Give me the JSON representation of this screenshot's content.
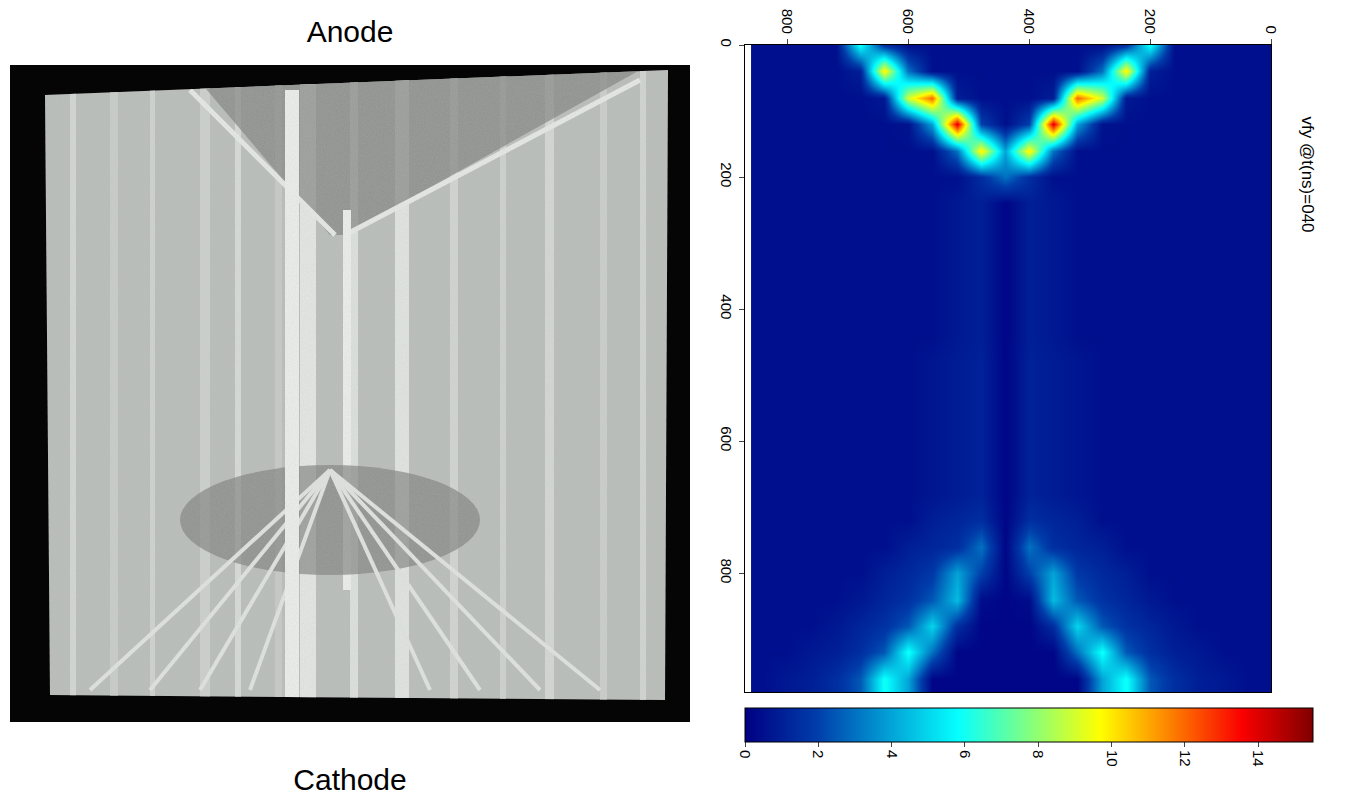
{
  "photo": {
    "top_label": "Anode",
    "bottom_label": "Cathode"
  },
  "chart_data": {
    "type": "heatmap",
    "title": "vfy @t(ns)=040",
    "x": [
      0,
      40,
      80,
      120,
      160,
      200,
      240,
      280,
      320,
      360,
      400,
      440,
      480,
      520,
      560,
      600,
      640,
      680,
      720,
      760,
      800,
      840
    ],
    "y": [
      0,
      40,
      80,
      120,
      160,
      200,
      240,
      280,
      320,
      360,
      400,
      440,
      480,
      520,
      560,
      600,
      640,
      680,
      720,
      760,
      800,
      840,
      880,
      920,
      960
    ],
    "z": [
      [
        0.5,
        0.5,
        0.5,
        0.5,
        0.5,
        6,
        1.5,
        0.5,
        0.5,
        0.5,
        0.5,
        0.5,
        0.5,
        0.5,
        0.5,
        0.5,
        1.5,
        6,
        0.5,
        0.5,
        0.5,
        0.5
      ],
      [
        0.5,
        0.5,
        0.5,
        0.5,
        0.5,
        1,
        10,
        3,
        0.5,
        0.5,
        0.5,
        0.5,
        0.5,
        0.5,
        0.5,
        3,
        10,
        1,
        0.5,
        0.5,
        0.5,
        0.5
      ],
      [
        0.5,
        0.5,
        0.5,
        0.5,
        0.5,
        0.5,
        0.8,
        9,
        12,
        1,
        0.5,
        0.5,
        0.5,
        1,
        12,
        9,
        0.8,
        0.5,
        0.5,
        0.5,
        0.5,
        0.5
      ],
      [
        0.5,
        0.5,
        0.5,
        0.5,
        0.5,
        0.5,
        0.5,
        0.6,
        4,
        14,
        2,
        0.5,
        2,
        14,
        4,
        0.6,
        0.5,
        0.5,
        0.5,
        0.5,
        0.5,
        0.5
      ],
      [
        0.5,
        0.5,
        0.5,
        0.5,
        0.5,
        0.5,
        0.5,
        0.5,
        0.5,
        3,
        10,
        4,
        10,
        3,
        0.5,
        0.5,
        0.5,
        0.5,
        0.5,
        0.5,
        0.5,
        0.5
      ],
      [
        0.5,
        0.5,
        0.5,
        0.5,
        0.5,
        0.5,
        0.5,
        0.5,
        0.5,
        0.5,
        1.5,
        3,
        1.5,
        0.5,
        0.5,
        0.5,
        0.5,
        0.5,
        0.5,
        0.5,
        0.5,
        0.5
      ],
      [
        0.5,
        0.5,
        0.5,
        0.5,
        0.5,
        0.5,
        0.5,
        0.5,
        0.5,
        0.8,
        1,
        0.2,
        1,
        0.8,
        0.5,
        0.5,
        0.5,
        0.5,
        0.5,
        0.5,
        0.5,
        0.5
      ],
      [
        0.5,
        0.5,
        0.5,
        0.5,
        0.5,
        0.5,
        0.5,
        0.5,
        0.5,
        0.8,
        1,
        0.2,
        1,
        0.8,
        0.5,
        0.5,
        0.5,
        0.5,
        0.5,
        0.5,
        0.5,
        0.5
      ],
      [
        0.5,
        0.5,
        0.5,
        0.5,
        0.5,
        0.5,
        0.5,
        0.5,
        0.5,
        0.8,
        1,
        0.2,
        1,
        0.8,
        0.5,
        0.5,
        0.5,
        0.5,
        0.5,
        0.5,
        0.5,
        0.5
      ],
      [
        0.5,
        0.5,
        0.5,
        0.5,
        0.5,
        0.5,
        0.5,
        0.5,
        0.5,
        0.8,
        1,
        0.2,
        1,
        0.8,
        0.5,
        0.5,
        0.5,
        0.5,
        0.5,
        0.5,
        0.5,
        0.5
      ],
      [
        0.5,
        0.5,
        0.5,
        0.5,
        0.5,
        0.5,
        0.5,
        0.5,
        0.5,
        0.8,
        1,
        0.2,
        1,
        0.8,
        0.5,
        0.5,
        0.5,
        0.5,
        0.5,
        0.5,
        0.5,
        0.5
      ],
      [
        0.5,
        0.5,
        0.5,
        0.5,
        0.5,
        0.5,
        0.5,
        0.5,
        0.5,
        0.8,
        1,
        0.2,
        1,
        0.8,
        0.5,
        0.5,
        0.5,
        0.5,
        0.5,
        0.5,
        0.5,
        0.5
      ],
      [
        0.5,
        0.5,
        0.5,
        0.5,
        0.5,
        0.5,
        0.5,
        0.5,
        0.7,
        0.9,
        1.1,
        0.2,
        1.1,
        0.9,
        0.7,
        0.5,
        0.5,
        0.5,
        0.5,
        0.5,
        0.5,
        0.5
      ],
      [
        0.5,
        0.5,
        0.5,
        0.5,
        0.5,
        0.5,
        0.5,
        0.5,
        0.7,
        0.9,
        1.1,
        0.2,
        1.1,
        0.9,
        0.7,
        0.5,
        0.5,
        0.5,
        0.5,
        0.5,
        0.5,
        0.5
      ],
      [
        0.5,
        0.5,
        0.5,
        0.5,
        0.5,
        0.5,
        0.5,
        0.5,
        0.7,
        0.9,
        1.1,
        0.2,
        1.1,
        0.9,
        0.7,
        0.5,
        0.5,
        0.5,
        0.5,
        0.5,
        0.5,
        0.5
      ],
      [
        0.5,
        0.5,
        0.5,
        0.5,
        0.5,
        0.5,
        0.5,
        0.5,
        0.7,
        0.9,
        1.1,
        0.2,
        1.1,
        0.9,
        0.7,
        0.5,
        0.5,
        0.5,
        0.5,
        0.5,
        0.5,
        0.5
      ],
      [
        0.5,
        0.5,
        0.5,
        0.5,
        0.5,
        0.5,
        0.5,
        0.5,
        0.7,
        0.9,
        1.1,
        0.2,
        1.1,
        0.9,
        0.7,
        0.5,
        0.5,
        0.5,
        0.5,
        0.5,
        0.5,
        0.5
      ],
      [
        0.5,
        0.5,
        0.5,
        0.5,
        0.5,
        0.5,
        0.5,
        0.5,
        0.7,
        0.9,
        1.1,
        0.2,
        1.1,
        0.9,
        0.7,
        0.5,
        0.5,
        0.5,
        0.5,
        0.5,
        0.5,
        0.5
      ],
      [
        0.5,
        0.5,
        0.5,
        0.5,
        0.5,
        0.5,
        0.5,
        0.5,
        1,
        1.2,
        1.5,
        0.2,
        1.5,
        1.2,
        1,
        0.5,
        0.5,
        0.5,
        0.5,
        0.5,
        0.5,
        0.5
      ],
      [
        0.5,
        0.5,
        0.5,
        0.5,
        0.5,
        0.5,
        0.5,
        1,
        1.2,
        1.5,
        3,
        0.2,
        3,
        1.5,
        1.2,
        1,
        0.5,
        0.5,
        0.5,
        0.5,
        0.5,
        0.5
      ],
      [
        0.5,
        0.5,
        0.5,
        0.5,
        0.5,
        0.5,
        1,
        1.3,
        1.8,
        4,
        2,
        0.2,
        2,
        4,
        1.8,
        1.3,
        1,
        0.5,
        0.5,
        0.5,
        0.5,
        0.5
      ],
      [
        0.5,
        0.5,
        0.5,
        0.5,
        0.5,
        0.8,
        1.2,
        1.6,
        2.5,
        4.5,
        0.4,
        0.2,
        0.4,
        4.5,
        2.5,
        1.6,
        1.2,
        0.8,
        0.5,
        0.5,
        0.5,
        0.5
      ],
      [
        0.5,
        0.5,
        0.5,
        0.5,
        0.8,
        1.2,
        1.6,
        2.5,
        5,
        1.5,
        0.2,
        0.2,
        0.2,
        1.5,
        5,
        2.5,
        1.6,
        1.2,
        0.8,
        0.5,
        0.5,
        0.5
      ],
      [
        0.5,
        0.5,
        0.5,
        0.8,
        1,
        1.5,
        2.5,
        6,
        3,
        0.2,
        0.2,
        0.2,
        0.2,
        0.2,
        3,
        6,
        2.5,
        1.5,
        1,
        0.8,
        0.5,
        0.5
      ],
      [
        0.5,
        0.5,
        0.8,
        1,
        1.5,
        2.5,
        6,
        4,
        0.2,
        0.2,
        0.2,
        0.2,
        0.2,
        0.2,
        0.2,
        4,
        6,
        2.5,
        1.5,
        1,
        0.8,
        0.5
      ]
    ],
    "xlim": [
      870,
      0
    ],
    "xticks": [
      0,
      200,
      400,
      600,
      800
    ],
    "ylim": [
      980,
      0
    ],
    "yticks": [
      0,
      200,
      400,
      600,
      800
    ],
    "colorbar": {
      "range": [
        0,
        15.5
      ],
      "ticks": [
        0,
        2,
        4,
        6,
        8,
        10,
        12,
        14
      ]
    }
  }
}
